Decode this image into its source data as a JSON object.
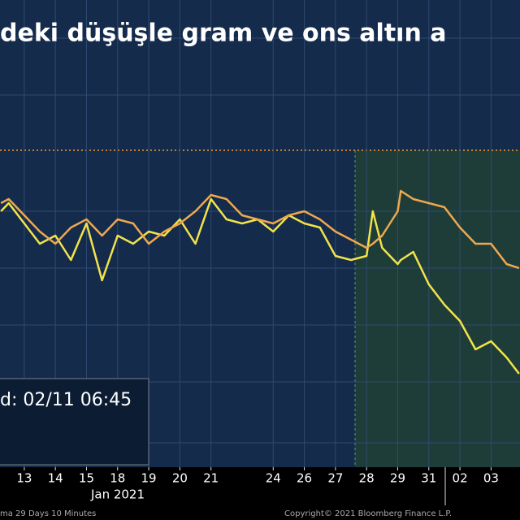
{
  "chart_data": {
    "type": "line",
    "title": "deki düşüşle gram ve ons altın a",
    "legend_text": "d: 02/11 06:45",
    "x_group_label": "Jan 2021",
    "footer_left": "ma 29 Days 10 Minutes",
    "footer_right": "Copyright© 2021 Bloomberg Finance L.P.",
    "x": [
      -0.75,
      -0.5,
      0,
      0.5,
      1,
      1.5,
      2,
      2.5,
      3,
      3.5,
      4,
      4.5,
      5,
      5.5,
      6,
      6.5,
      7,
      7.5,
      8,
      8.5,
      9,
      9.5,
      10,
      10.5,
      11,
      11.2,
      11.5,
      12,
      12.1,
      12.5,
      13,
      13.5,
      14,
      14.5,
      15,
      15.5,
      15.9
    ],
    "series": [
      {
        "color": "#f2e34a",
        "values": [
          340,
          350,
          325,
          300,
          310,
          280,
          325,
          255,
          310,
          300,
          315,
          310,
          330,
          300,
          355,
          330,
          325,
          330,
          315,
          335,
          325,
          320,
          285,
          280,
          285,
          340,
          295,
          275,
          280,
          290,
          250,
          225,
          205,
          170,
          180,
          160,
          140
        ]
      },
      {
        "color": "#eea84e",
        "values": [
          350,
          355,
          335,
          315,
          300,
          320,
          330,
          310,
          330,
          325,
          300,
          315,
          325,
          340,
          360,
          355,
          335,
          330,
          325,
          335,
          340,
          330,
          315,
          305,
          295,
          300,
          310,
          340,
          365,
          355,
          350,
          345,
          320,
          300,
          300,
          275,
          270
        ]
      }
    ],
    "xlim": [
      -0.78,
      15.93
    ],
    "ylim": [
      25,
      600
    ],
    "xticks": [
      {
        "value": 0,
        "label": "13"
      },
      {
        "value": 1,
        "label": "14"
      },
      {
        "value": 2,
        "label": "15"
      },
      {
        "value": 3,
        "label": "18"
      },
      {
        "value": 4,
        "label": "19"
      },
      {
        "value": 5,
        "label": "20"
      },
      {
        "value": 6,
        "label": "21"
      },
      {
        "value": 8,
        "label": "24"
      },
      {
        "value": 9,
        "label": "26"
      },
      {
        "value": 10,
        "label": "27"
      },
      {
        "value": 11,
        "label": "28"
      },
      {
        "value": 12,
        "label": "29"
      },
      {
        "value": 13,
        "label": "31"
      },
      {
        "value": 14,
        "label": "02"
      },
      {
        "value": 15,
        "label": "03"
      }
    ],
    "grid": true
  }
}
